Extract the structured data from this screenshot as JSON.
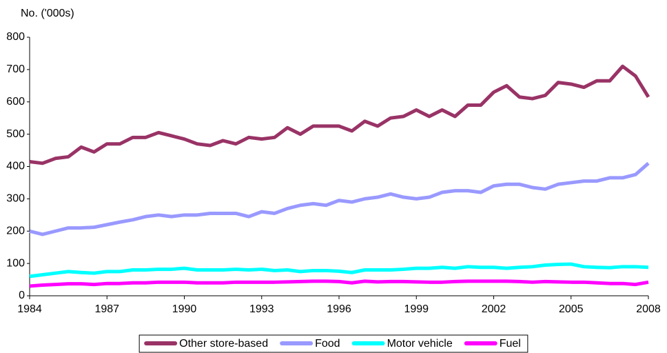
{
  "chart_data": {
    "type": "line",
    "y_label": "No. ('000s)",
    "x": [
      1984,
      1984.5,
      1985,
      1985.5,
      1986,
      1986.5,
      1987,
      1987.5,
      1988,
      1988.5,
      1989,
      1989.5,
      1990,
      1990.5,
      1991,
      1991.5,
      1992,
      1992.5,
      1993,
      1993.5,
      1994,
      1994.5,
      1995,
      1995.5,
      1996,
      1996.5,
      1997,
      1997.5,
      1998,
      1998.5,
      1999,
      1999.5,
      2000,
      2000.5,
      2001,
      2001.5,
      2002,
      2002.5,
      2003,
      2003.5,
      2004,
      2004.5,
      2005,
      2005.5,
      2006,
      2006.5,
      2007,
      2007.5,
      2008
    ],
    "xlim": [
      1984,
      2008
    ],
    "xticks": [
      1984,
      1987,
      1990,
      1993,
      1996,
      1999,
      2002,
      2005,
      2008
    ],
    "ylim": [
      0,
      800
    ],
    "yticks": [
      0,
      100,
      200,
      300,
      400,
      500,
      600,
      700,
      800
    ],
    "grid": false,
    "legend": "bottom",
    "series": [
      {
        "name": "Other store-based",
        "color": "#993366",
        "values": [
          415,
          410,
          425,
          430,
          460,
          445,
          470,
          470,
          490,
          490,
          505,
          495,
          485,
          470,
          465,
          480,
          470,
          490,
          485,
          490,
          520,
          500,
          525,
          525,
          525,
          510,
          540,
          525,
          550,
          555,
          575,
          555,
          575,
          555,
          590,
          590,
          630,
          650,
          615,
          610,
          620,
          660,
          655,
          645,
          665,
          665,
          710,
          680,
          615
        ]
      },
      {
        "name": "Food",
        "color": "#9999ff",
        "values": [
          200,
          190,
          200,
          210,
          210,
          212,
          220,
          228,
          235,
          245,
          250,
          245,
          250,
          250,
          255,
          255,
          255,
          245,
          260,
          255,
          270,
          280,
          285,
          280,
          295,
          290,
          300,
          305,
          315,
          305,
          300,
          305,
          320,
          325,
          325,
          320,
          340,
          345,
          345,
          335,
          330,
          345,
          350,
          355,
          355,
          365,
          365,
          375,
          410
        ]
      },
      {
        "name": "Motor vehicle",
        "color": "#00ffff",
        "values": [
          60,
          65,
          70,
          75,
          72,
          70,
          75,
          75,
          80,
          80,
          82,
          82,
          85,
          80,
          80,
          80,
          82,
          80,
          82,
          78,
          80,
          75,
          78,
          78,
          76,
          72,
          80,
          80,
          80,
          82,
          85,
          85,
          88,
          85,
          90,
          88,
          88,
          85,
          88,
          90,
          95,
          97,
          98,
          90,
          88,
          87,
          90,
          90,
          88
        ]
      },
      {
        "name": "Fuel",
        "color": "#ff00ff",
        "values": [
          30,
          33,
          35,
          37,
          37,
          35,
          38,
          38,
          40,
          40,
          42,
          42,
          42,
          40,
          40,
          40,
          42,
          42,
          42,
          42,
          43,
          44,
          45,
          45,
          44,
          40,
          45,
          43,
          44,
          44,
          43,
          42,
          42,
          44,
          45,
          45,
          45,
          45,
          44,
          42,
          44,
          43,
          42,
          42,
          40,
          38,
          38,
          35,
          42
        ]
      }
    ]
  }
}
